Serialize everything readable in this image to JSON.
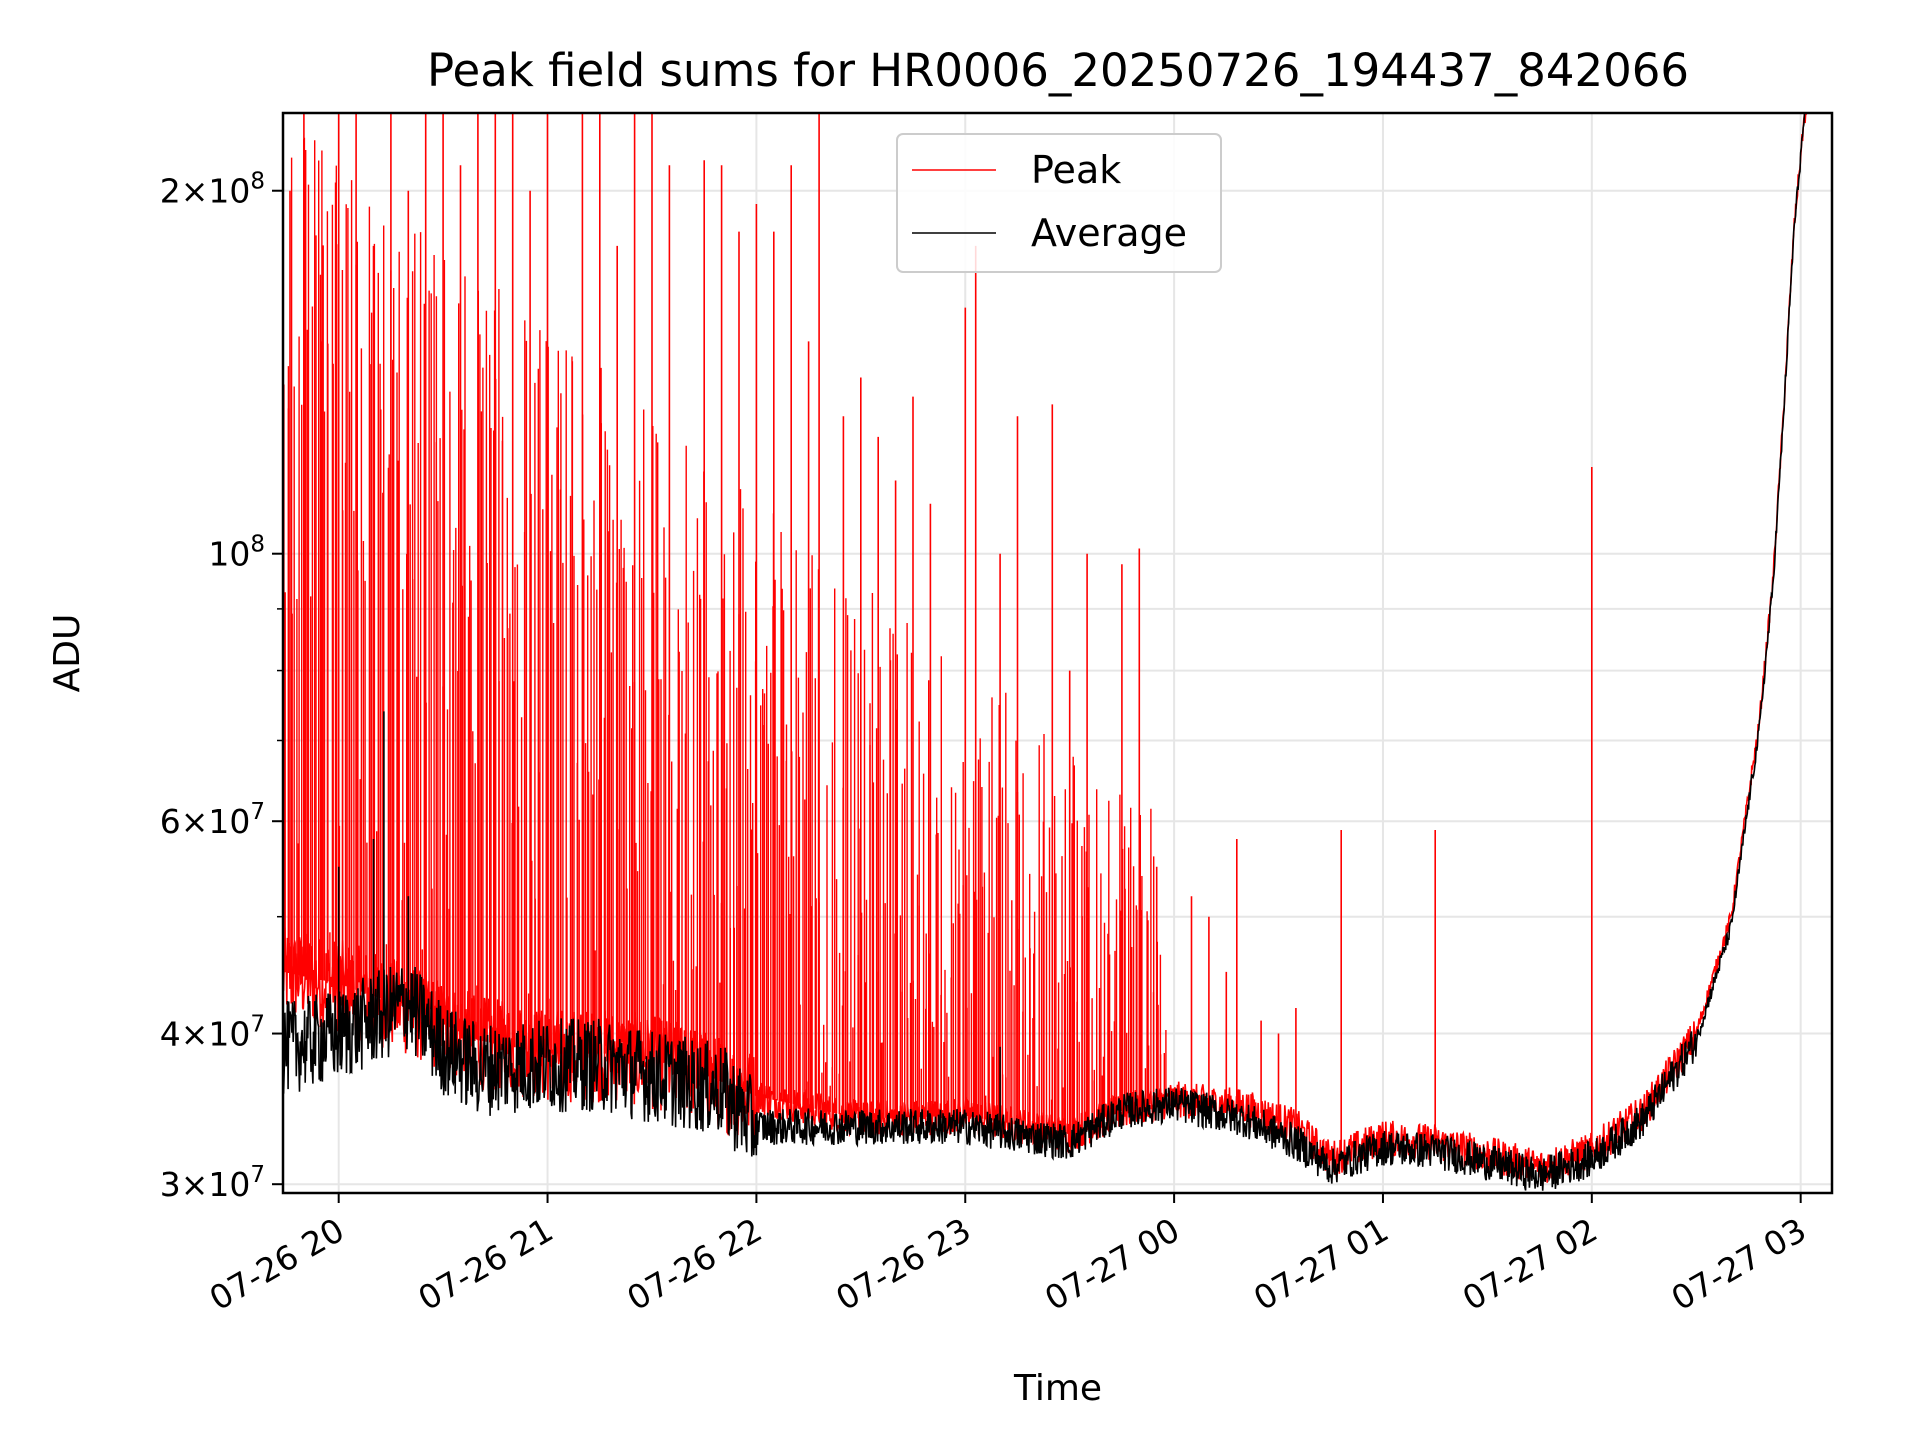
{
  "chart_data": {
    "type": "line",
    "title": "Peak field sums for HR0006_20250726_194437_842066",
    "xlabel": "Time",
    "ylabel": "ADU",
    "y_scale": "log",
    "ylim": [
      29500000,
      232000000
    ],
    "xlim": [
      "2025-07-26 19:44",
      "2025-07-27 03:09"
    ],
    "grid": true,
    "legend_position": "top-center",
    "x_ticks": [
      {
        "t": "2025-07-26 20:00",
        "label": "07-26 20"
      },
      {
        "t": "2025-07-26 21:00",
        "label": "07-26 21"
      },
      {
        "t": "2025-07-26 22:00",
        "label": "07-26 22"
      },
      {
        "t": "2025-07-26 23:00",
        "label": "07-26 23"
      },
      {
        "t": "2025-07-27 00:00",
        "label": "07-27 00"
      },
      {
        "t": "2025-07-27 01:00",
        "label": "07-27 01"
      },
      {
        "t": "2025-07-27 02:00",
        "label": "07-27 02"
      },
      {
        "t": "2025-07-27 03:00",
        "label": "07-27 03"
      }
    ],
    "y_ticks": [
      {
        "value": 30000000,
        "base": "3×10",
        "exp": "7"
      },
      {
        "value": 40000000,
        "base": "4×10",
        "exp": "7"
      },
      {
        "value": 60000000,
        "base": "6×10",
        "exp": "7"
      },
      {
        "value": 100000000,
        "base": "10",
        "exp": "8"
      },
      {
        "value": 200000000,
        "base": "2×10",
        "exp": "8"
      }
    ],
    "series": [
      {
        "name": "Peak",
        "color": "#ff0000",
        "baseline": [
          [
            "2025-07-26 19:44",
            45000000
          ],
          [
            "2025-07-26 20:00",
            44000000
          ],
          [
            "2025-07-26 20:20",
            42000000
          ],
          [
            "2025-07-26 20:40",
            39500000
          ],
          [
            "2025-07-26 21:00",
            38500000
          ],
          [
            "2025-07-26 21:20",
            38500000
          ],
          [
            "2025-07-26 21:40",
            37500000
          ],
          [
            "2025-07-26 22:00",
            35500000
          ],
          [
            "2025-07-26 22:30",
            34000000
          ],
          [
            "2025-07-26 23:00",
            34200000
          ],
          [
            "2025-07-26 23:30",
            33000000
          ],
          [
            "2025-07-26 23:45",
            34500000
          ],
          [
            "2025-07-27 00:00",
            35300000
          ],
          [
            "2025-07-27 00:20",
            34800000
          ],
          [
            "2025-07-27 00:35",
            33500000
          ],
          [
            "2025-07-27 00:45",
            31500000
          ],
          [
            "2025-07-27 01:00",
            32800000
          ],
          [
            "2025-07-27 01:15",
            32500000
          ],
          [
            "2025-07-27 01:30",
            31800000
          ],
          [
            "2025-07-27 01:45",
            31000000
          ],
          [
            "2025-07-27 02:00",
            32000000
          ],
          [
            "2025-07-27 02:15",
            34500000
          ],
          [
            "2025-07-27 02:30",
            40000000
          ],
          [
            "2025-07-27 02:40",
            50000000
          ],
          [
            "2025-07-27 02:45",
            63000000
          ],
          [
            "2025-07-27 02:48",
            72000000
          ],
          [
            "2025-07-27 02:52",
            95000000
          ],
          [
            "2025-07-27 02:55",
            130000000
          ],
          [
            "2025-07-27 02:58",
            185000000
          ],
          [
            "2025-07-27 03:01",
            230000000
          ],
          [
            "2025-07-27 03:02",
            232000000
          ]
        ],
        "peaks": [
          [
            "2025-07-26 19:46",
            200000000
          ],
          [
            "2025-07-26 19:50",
            232000000
          ],
          [
            "2025-07-26 19:55",
            150000000
          ],
          [
            "2025-07-26 20:00",
            232000000
          ],
          [
            "2025-07-26 20:05",
            232000000
          ],
          [
            "2025-07-26 20:10",
            180000000
          ],
          [
            "2025-07-26 20:15",
            232000000
          ],
          [
            "2025-07-26 20:20",
            200000000
          ],
          [
            "2025-07-26 20:25",
            232000000
          ],
          [
            "2025-07-26 20:30",
            232000000
          ],
          [
            "2025-07-26 20:35",
            210000000
          ],
          [
            "2025-07-26 20:40",
            232000000
          ],
          [
            "2025-07-26 20:45",
            232000000
          ],
          [
            "2025-07-26 20:50",
            232000000
          ],
          [
            "2025-07-26 20:55",
            200000000
          ],
          [
            "2025-07-26 21:00",
            232000000
          ],
          [
            "2025-07-26 21:10",
            232000000
          ],
          [
            "2025-07-26 21:15",
            232000000
          ],
          [
            "2025-07-26 21:20",
            180000000
          ],
          [
            "2025-07-26 21:25",
            232000000
          ],
          [
            "2025-07-26 21:30",
            232000000
          ],
          [
            "2025-07-26 21:35",
            210000000
          ],
          [
            "2025-07-26 21:45",
            212000000
          ],
          [
            "2025-07-26 21:50",
            210000000
          ],
          [
            "2025-07-26 21:55",
            185000000
          ],
          [
            "2025-07-26 22:00",
            195000000
          ],
          [
            "2025-07-26 22:05",
            185000000
          ],
          [
            "2025-07-26 22:10",
            210000000
          ],
          [
            "2025-07-26 22:15",
            150000000
          ],
          [
            "2025-07-26 22:18",
            232000000
          ],
          [
            "2025-07-26 22:25",
            130000000
          ],
          [
            "2025-07-26 22:30",
            140000000
          ],
          [
            "2025-07-26 22:35",
            125000000
          ],
          [
            "2025-07-26 22:40",
            115000000
          ],
          [
            "2025-07-26 22:45",
            135000000
          ],
          [
            "2025-07-26 22:50",
            110000000
          ],
          [
            "2025-07-26 23:00",
            160000000
          ],
          [
            "2025-07-26 23:03",
            180000000
          ],
          [
            "2025-07-26 23:10",
            100000000
          ],
          [
            "2025-07-26 23:15",
            130000000
          ],
          [
            "2025-07-26 23:25",
            133000000
          ],
          [
            "2025-07-26 23:30",
            80000000
          ],
          [
            "2025-07-26 23:35",
            100000000
          ],
          [
            "2025-07-26 23:45",
            98000000
          ],
          [
            "2025-07-26 23:50",
            101000000
          ],
          [
            "2025-07-26 23:55",
            55000000
          ],
          [
            "2025-07-27 00:05",
            52000000
          ],
          [
            "2025-07-27 00:10",
            50000000
          ],
          [
            "2025-07-27 00:15",
            45000000
          ],
          [
            "2025-07-27 00:18",
            58000000
          ],
          [
            "2025-07-27 00:25",
            41000000
          ],
          [
            "2025-07-27 00:30",
            40000000
          ],
          [
            "2025-07-27 00:35",
            42000000
          ],
          [
            "2025-07-27 00:48",
            59000000
          ],
          [
            "2025-07-27 01:15",
            59000000
          ],
          [
            "2025-07-27 02:00",
            118000000
          ]
        ]
      },
      {
        "name": "Average",
        "color": "#000000",
        "baseline": [
          [
            "2025-07-26 19:44",
            39000000
          ],
          [
            "2025-07-26 20:00",
            40000000
          ],
          [
            "2025-07-26 20:20",
            42500000
          ],
          [
            "2025-07-26 20:30",
            39000000
          ],
          [
            "2025-07-26 20:40",
            37500000
          ],
          [
            "2025-07-26 21:00",
            37800000
          ],
          [
            "2025-07-26 21:15",
            37800000
          ],
          [
            "2025-07-26 21:30",
            37000000
          ],
          [
            "2025-07-26 21:50",
            36000000
          ],
          [
            "2025-07-26 22:00",
            33500000
          ],
          [
            "2025-07-26 22:30",
            33500000
          ],
          [
            "2025-07-26 23:00",
            33500000
          ],
          [
            "2025-07-26 23:30",
            32500000
          ],
          [
            "2025-07-26 23:45",
            34500000
          ],
          [
            "2025-07-27 00:00",
            35000000
          ],
          [
            "2025-07-27 00:20",
            34000000
          ],
          [
            "2025-07-27 00:35",
            32500000
          ],
          [
            "2025-07-27 00:45",
            31000000
          ],
          [
            "2025-07-27 01:00",
            32200000
          ],
          [
            "2025-07-27 01:15",
            32000000
          ],
          [
            "2025-07-27 01:30",
            31300000
          ],
          [
            "2025-07-27 01:45",
            30500000
          ],
          [
            "2025-07-27 02:00",
            31500000
          ],
          [
            "2025-07-27 02:15",
            34000000
          ],
          [
            "2025-07-27 02:30",
            39500000
          ],
          [
            "2025-07-27 02:40",
            49000000
          ],
          [
            "2025-07-27 02:45",
            62000000
          ],
          [
            "2025-07-27 02:48",
            71000000
          ],
          [
            "2025-07-27 02:52",
            94000000
          ],
          [
            "2025-07-27 02:55",
            129000000
          ],
          [
            "2025-07-27 02:58",
            184000000
          ],
          [
            "2025-07-27 03:01",
            230000000
          ],
          [
            "2025-07-27 03:02",
            232000000
          ]
        ],
        "peaks": [
          [
            "2025-07-26 20:00",
            55000000
          ],
          [
            "2025-07-26 20:10",
            58000000
          ],
          [
            "2025-07-26 20:13",
            74000000
          ],
          [
            "2025-07-26 20:20",
            52000000
          ],
          [
            "2025-07-26 23:10",
            39000000
          ]
        ]
      }
    ]
  }
}
